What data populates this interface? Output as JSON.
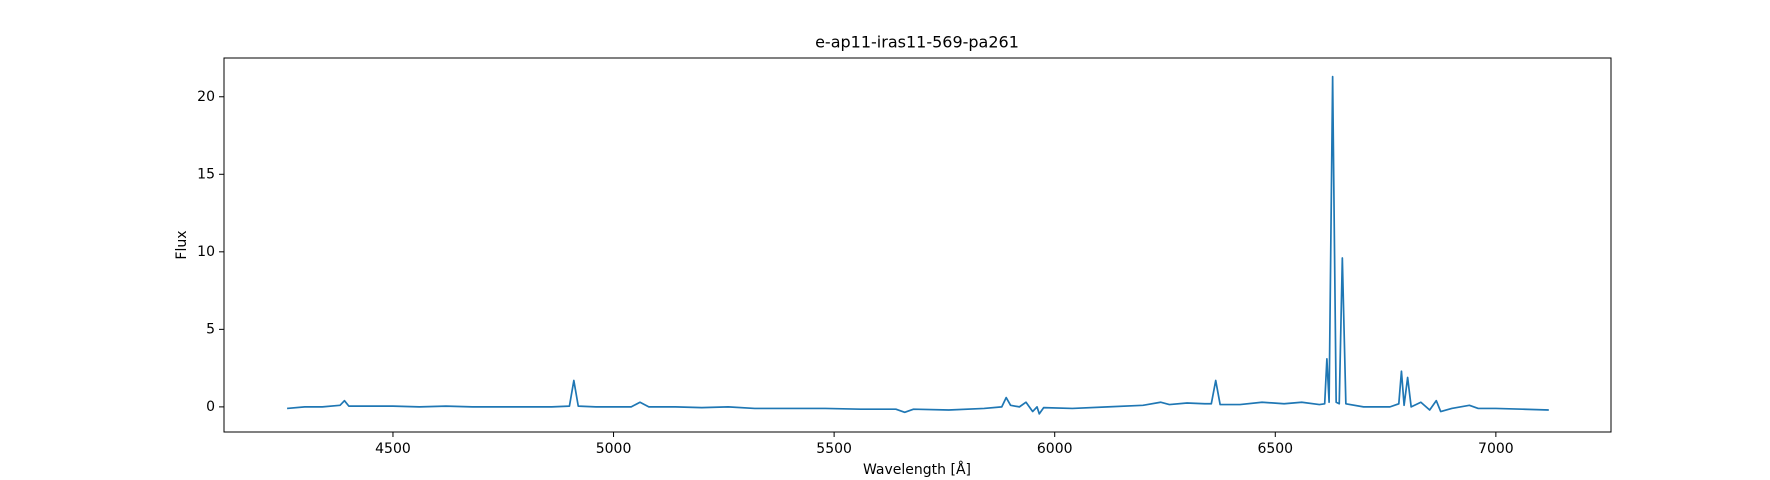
{
  "chart_data": {
    "type": "line",
    "title": "e-ap11-iras11-569-pa261",
    "x_label": "Wavelength [Å]",
    "y_label": "Flux",
    "x": [
      4260,
      4300,
      4340,
      4380,
      4390,
      4400,
      4440,
      4500,
      4560,
      4620,
      4680,
      4740,
      4800,
      4860,
      4900,
      4910,
      4920,
      4960,
      5000,
      5040,
      5060,
      5080,
      5140,
      5200,
      5260,
      5320,
      5400,
      5480,
      5560,
      5640,
      5660,
      5680,
      5760,
      5840,
      5880,
      5890,
      5900,
      5920,
      5935,
      5950,
      5960,
      5965,
      5975,
      6040,
      6120,
      6200,
      6240,
      6260,
      6300,
      6340,
      6355,
      6365,
      6375,
      6420,
      6470,
      6520,
      6560,
      6600,
      6612,
      6617,
      6622,
      6630,
      6638,
      6645,
      6652,
      6660,
      6700,
      6760,
      6780,
      6786,
      6792,
      6800,
      6808,
      6830,
      6850,
      6865,
      6875,
      6900,
      6940,
      6960,
      7000,
      7060,
      7120
    ],
    "series": [
      {
        "name": "flux",
        "color": "#1f77b4",
        "values": [
          -0.1,
          0.0,
          0.0,
          0.1,
          0.4,
          0.05,
          0.05,
          0.05,
          0.0,
          0.05,
          0.0,
          0.0,
          0.0,
          0.0,
          0.05,
          1.7,
          0.05,
          0.0,
          0.0,
          0.0,
          0.3,
          0.0,
          0.0,
          -0.05,
          0.0,
          -0.1,
          -0.1,
          -0.1,
          -0.15,
          -0.15,
          -0.35,
          -0.15,
          -0.2,
          -0.1,
          0.0,
          0.6,
          0.1,
          0.0,
          0.3,
          -0.3,
          0.0,
          -0.45,
          -0.05,
          -0.1,
          0.0,
          0.1,
          0.3,
          0.15,
          0.25,
          0.2,
          0.2,
          1.7,
          0.15,
          0.15,
          0.3,
          0.2,
          0.3,
          0.15,
          0.2,
          3.1,
          0.3,
          21.3,
          0.3,
          0.2,
          9.6,
          0.2,
          0.0,
          0.0,
          0.2,
          2.3,
          0.1,
          1.9,
          0.0,
          0.3,
          -0.2,
          0.4,
          -0.3,
          -0.1,
          0.1,
          -0.1,
          -0.1,
          -0.15,
          -0.2
        ]
      }
    ],
    "xlim": [
      4117,
      7261
    ],
    "ylim": [
      -1.62,
      22.5
    ],
    "xticks": [
      4500,
      5000,
      5500,
      6000,
      6500,
      7000
    ],
    "yticks": [
      0,
      5,
      10,
      15,
      20
    ]
  }
}
